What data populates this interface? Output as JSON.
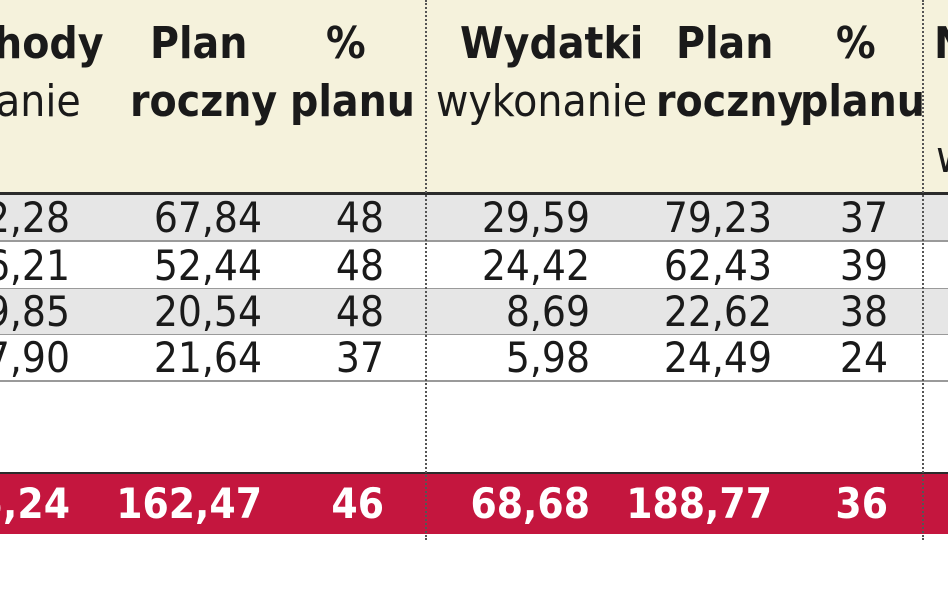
{
  "chart_data": {
    "type": "table",
    "columns": [
      {
        "line1": "hody",
        "line2": "anie"
      },
      {
        "line1": "Plan",
        "line2": "roczny"
      },
      {
        "line1": "%",
        "line2": "planu"
      },
      {
        "line1": "Wydatki",
        "line2": "wykonanie"
      },
      {
        "line1": "Plan",
        "line2": "roczny"
      },
      {
        "line1": "%",
        "line2": "planu"
      },
      {
        "line1": "N",
        "line2": "",
        "line3": "w"
      }
    ],
    "rows": [
      [
        "2,28",
        "67,84",
        "48",
        "29,59",
        "79,23",
        "37"
      ],
      [
        "6,21",
        "52,44",
        "48",
        "24,42",
        "62,43",
        "39"
      ],
      [
        "9,85",
        "20,54",
        "48",
        "8,69",
        "22,62",
        "38"
      ],
      [
        "7,90",
        "21,64",
        "37",
        "5,98",
        "24,49",
        "24"
      ]
    ],
    "total": [
      "5,24",
      "162,47",
      "46",
      "68,68",
      "188,77",
      "36"
    ]
  },
  "colors": {
    "header_bg": "#f5f2dc",
    "row_shade": "#e6e6e6",
    "total_bg": "#c4163e"
  }
}
